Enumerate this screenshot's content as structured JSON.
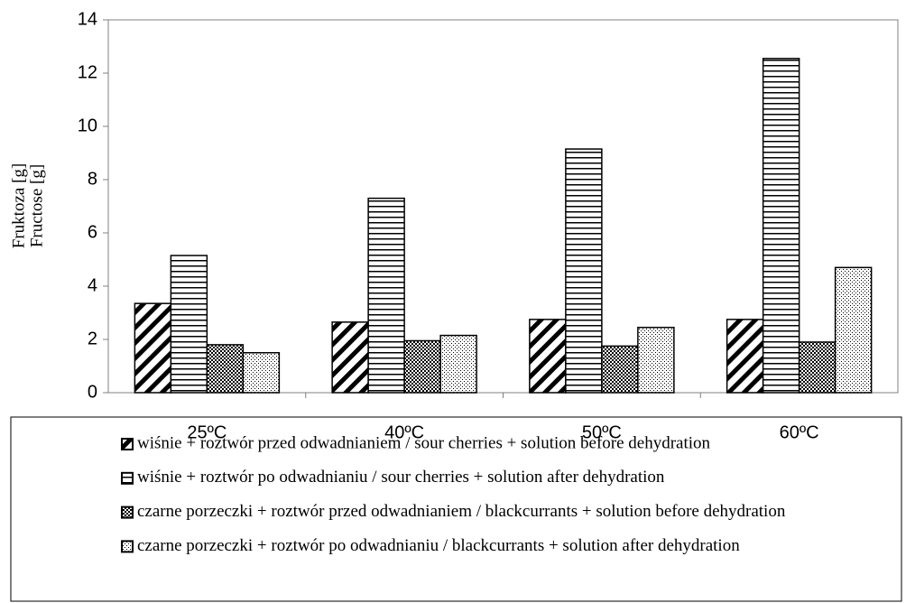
{
  "chart_data": {
    "type": "bar",
    "ylabel": [
      "Fruktoza [g]",
      "Fructose [g]"
    ],
    "categories": [
      "25ºC",
      "40ºC",
      "50ºC",
      "60ºC"
    ],
    "series": [
      {
        "name": "wiśnie + roztwór przed odwadnianiem / sour cherries + solution before dehydration",
        "color": "#000000",
        "pattern": "diagonal",
        "values": [
          3.35,
          2.65,
          2.75,
          2.75
        ]
      },
      {
        "name": "wiśnie + roztwór po odwadnianiu / sour cherries + solution after dehydration",
        "color": "#000000",
        "pattern": "horizontal",
        "values": [
          5.15,
          7.3,
          9.15,
          12.55
        ]
      },
      {
        "name": "czarne porzeczki + roztwór przed odwadnianiem / blackcurrants + solution before dehydration",
        "color": "#000000",
        "pattern": "checker",
        "values": [
          1.8,
          1.95,
          1.75,
          1.9
        ]
      },
      {
        "name": "czarne porzeczki + roztwór po odwadnianiu / blackcurrants + solution after dehydration",
        "color": "#000000",
        "pattern": "dots",
        "values": [
          1.5,
          2.15,
          2.45,
          4.7
        ]
      }
    ],
    "ylim": [
      0,
      14
    ],
    "yticks": [
      0,
      2,
      4,
      6,
      8,
      10,
      12,
      14
    ],
    "grid": false
  }
}
